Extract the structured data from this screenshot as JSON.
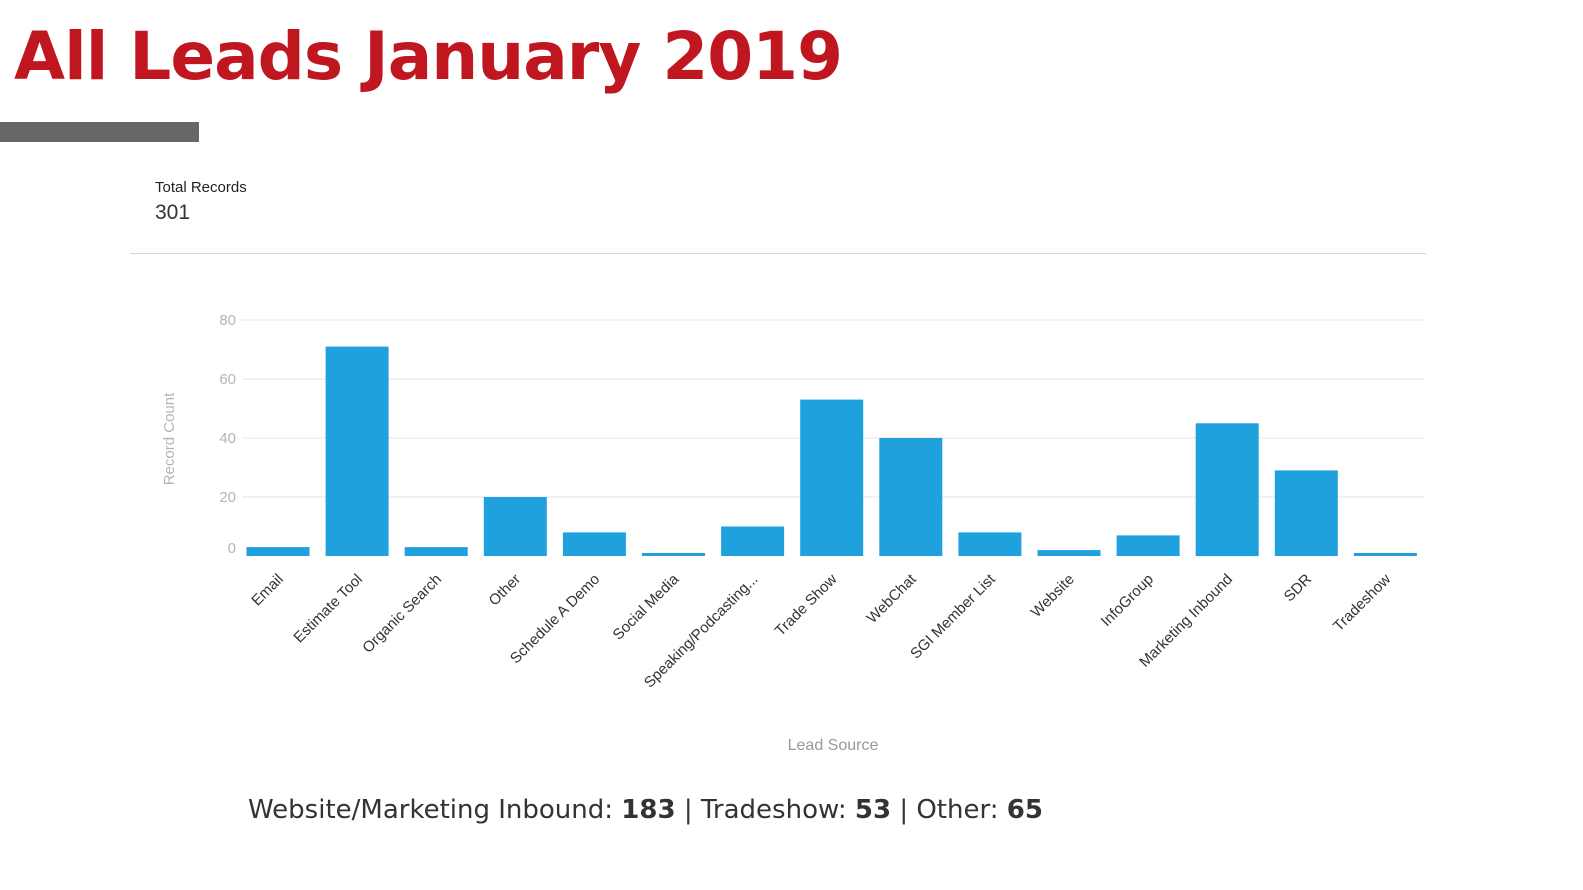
{
  "slide": {
    "title": "All Leads January 2019"
  },
  "metric": {
    "label": "Total Records",
    "value": "301"
  },
  "summary": {
    "label1": "Website/Marketing Inbound:",
    "value1": "183",
    "label2": "Tradeshow:",
    "value2": "53",
    "label3": "Other:",
    "value3": "65",
    "separator": "|"
  },
  "colors": {
    "title": "#c0161f",
    "bar": "#1ea1dc",
    "grid": "#e4e4e4",
    "axis_text": "#b5b5b5"
  },
  "chart_data": {
    "type": "bar",
    "title": "",
    "xlabel": "Lead Source",
    "ylabel": "Record Count",
    "ylim": [
      0,
      80
    ],
    "yticks": [
      0,
      20,
      40,
      60,
      80
    ],
    "grid": true,
    "categories": [
      "Email",
      "Estimate Tool",
      "Organic Search",
      "Other",
      "Schedule A Demo",
      "Social Media",
      "Speaking/Podcasting...",
      "Trade Show",
      "WebChat",
      "SGI Member List",
      "Website",
      "InfoGroup",
      "Marketing Inbound",
      "SDR",
      "Tradeshow"
    ],
    "values": [
      3,
      71,
      3,
      20,
      8,
      1,
      10,
      53,
      40,
      8,
      2,
      7,
      45,
      29,
      1
    ]
  }
}
